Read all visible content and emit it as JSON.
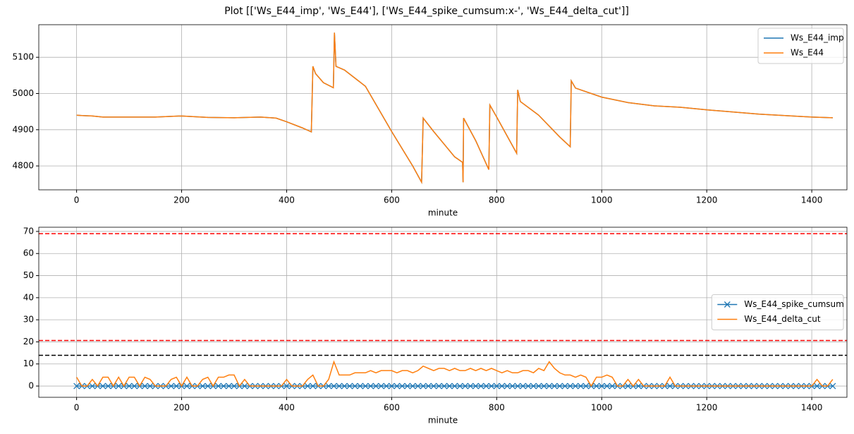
{
  "title": "Plot [['Ws_E44_imp', 'Ws_E44'], ['Ws_E44_spike_cumsum:x-', 'Ws_E44_delta_cut']]",
  "chart_data": [
    {
      "type": "line",
      "xlabel": "minute",
      "grid": true,
      "legend": "upper right",
      "xlim": [
        -72,
        1467
      ],
      "xticks": [
        0,
        200,
        400,
        600,
        800,
        1000,
        1200,
        1400
      ],
      "ylim": [
        4734,
        5190
      ],
      "yticks": [
        4800,
        4900,
        5000,
        5100
      ],
      "x": [
        0,
        10,
        30,
        50,
        100,
        150,
        200,
        250,
        300,
        350,
        380,
        400,
        430,
        447,
        450,
        455,
        470,
        489,
        491,
        494,
        510,
        550,
        600,
        640,
        657,
        660,
        680,
        720,
        735,
        736,
        737,
        760,
        785,
        787,
        800,
        838,
        840,
        845,
        880,
        920,
        940,
        942,
        950,
        1000,
        1050,
        1100,
        1150,
        1200,
        1300,
        1400,
        1440
      ],
      "series": [
        {
          "name": "Ws_E44_imp",
          "color": "#1f77b4",
          "values": [
            4940,
            4939,
            4938,
            4935,
            4935,
            4935,
            4938,
            4934,
            4933,
            4935,
            4932,
            4922,
            4905,
            4894,
            5075,
            5055,
            5030,
            5016,
            5168,
            5075,
            5065,
            5020,
            4895,
            4800,
            4755,
            4932,
            4895,
            4825,
            4810,
            4755,
            4932,
            4870,
            4790,
            4968,
            4935,
            4835,
            5010,
            4978,
            4940,
            4880,
            4853,
            5035,
            5015,
            4990,
            4975,
            4966,
            4962,
            4955,
            4943,
            4935,
            4933
          ]
        },
        {
          "name": "Ws_E44",
          "color": "#ff7f0e",
          "values": [
            4940,
            4939,
            4938,
            4935,
            4935,
            4935,
            4938,
            4934,
            4933,
            4935,
            4932,
            4922,
            4905,
            4894,
            5075,
            5055,
            5030,
            5016,
            5168,
            5075,
            5065,
            5020,
            4895,
            4800,
            4755,
            4932,
            4895,
            4825,
            4810,
            4755,
            4932,
            4870,
            4790,
            4968,
            4935,
            4835,
            5010,
            4978,
            4940,
            4880,
            4853,
            5035,
            5015,
            4990,
            4975,
            4966,
            4962,
            4955,
            4943,
            4935,
            4933
          ]
        }
      ]
    },
    {
      "type": "line",
      "xlabel": "minute",
      "grid": true,
      "legend": "center right",
      "xlim": [
        -72,
        1467
      ],
      "xticks": [
        0,
        200,
        400,
        600,
        800,
        1000,
        1200,
        1400
      ],
      "ylim": [
        -5.1,
        71.9
      ],
      "yticks": [
        0,
        10,
        20,
        30,
        40,
        50,
        60,
        70
      ],
      "hlines": [
        {
          "value": 69,
          "color": "#ff0000"
        },
        {
          "value": 20.6,
          "color": "#ff0000"
        },
        {
          "value": 13.9,
          "color": "#000000"
        }
      ],
      "x": [
        0,
        10,
        20,
        30,
        40,
        50,
        60,
        70,
        80,
        90,
        100,
        110,
        120,
        130,
        140,
        150,
        160,
        170,
        180,
        190,
        200,
        210,
        220,
        230,
        240,
        250,
        260,
        270,
        280,
        290,
        300,
        310,
        320,
        330,
        340,
        350,
        360,
        370,
        380,
        390,
        400,
        410,
        420,
        430,
        440,
        450,
        460,
        470,
        480,
        490,
        500,
        510,
        520,
        530,
        540,
        550,
        560,
        570,
        580,
        590,
        600,
        610,
        620,
        630,
        640,
        650,
        660,
        670,
        680,
        690,
        700,
        710,
        720,
        730,
        740,
        750,
        760,
        770,
        780,
        790,
        800,
        810,
        820,
        830,
        840,
        850,
        860,
        870,
        880,
        890,
        900,
        910,
        920,
        930,
        940,
        950,
        960,
        970,
        980,
        990,
        1000,
        1010,
        1020,
        1030,
        1040,
        1050,
        1060,
        1070,
        1080,
        1090,
        1100,
        1110,
        1120,
        1130,
        1140,
        1150,
        1160,
        1170,
        1180,
        1190,
        1200,
        1210,
        1220,
        1230,
        1240,
        1250,
        1260,
        1270,
        1280,
        1290,
        1300,
        1310,
        1320,
        1330,
        1340,
        1350,
        1360,
        1370,
        1380,
        1390,
        1400,
        1410,
        1420,
        1430,
        1440
      ],
      "series": [
        {
          "name": "Ws_E44_spike_cumsum",
          "color": "#1f77b4",
          "marker": "x",
          "values": [
            0,
            0,
            0,
            0,
            0,
            0,
            0,
            0,
            0,
            0,
            0,
            0,
            0,
            0,
            0,
            0,
            0,
            0,
            0,
            0,
            0,
            0,
            0,
            0,
            0,
            0,
            0,
            0,
            0,
            0,
            0,
            0,
            0,
            0,
            0,
            0,
            0,
            0,
            0,
            0,
            0,
            0,
            0,
            0,
            0,
            0,
            0,
            0,
            0,
            0,
            0,
            0,
            0,
            0,
            0,
            0,
            0,
            0,
            0,
            0,
            0,
            0,
            0,
            0,
            0,
            0,
            0,
            0,
            0,
            0,
            0,
            0,
            0,
            0,
            0,
            0,
            0,
            0,
            0,
            0,
            0,
            0,
            0,
            0,
            0,
            0,
            0,
            0,
            0,
            0,
            0,
            0,
            0,
            0,
            0,
            0,
            0,
            0,
            0,
            0,
            0,
            0,
            0,
            0,
            0,
            0,
            0,
            0,
            0,
            0,
            0,
            0,
            0,
            0,
            0,
            0,
            0,
            0,
            0,
            0,
            0,
            0,
            0,
            0,
            0,
            0,
            0,
            0,
            0,
            0,
            0,
            0,
            0,
            0,
            0,
            0,
            0,
            0,
            0,
            0,
            0,
            0,
            0,
            0,
            0
          ]
        },
        {
          "name": "Ws_E44_delta_cut",
          "color": "#ff7f0e",
          "values": [
            4,
            0,
            0,
            3,
            0,
            4,
            4,
            0,
            4,
            0,
            4,
            4,
            0,
            4,
            3,
            0,
            0,
            0,
            3,
            4,
            0,
            4,
            0,
            0,
            3,
            4,
            0,
            4,
            4,
            5,
            5,
            0,
            3,
            0,
            0,
            0,
            0,
            0,
            0,
            0,
            3,
            0,
            0,
            0,
            3,
            5,
            0,
            0,
            3,
            11,
            5,
            5,
            5,
            6,
            6,
            6,
            7,
            6,
            7,
            7,
            7,
            6,
            7,
            7,
            6,
            7,
            9,
            8,
            7,
            8,
            8,
            7,
            8,
            7,
            7,
            8,
            7,
            8,
            7,
            8,
            7,
            6,
            7,
            6,
            6,
            7,
            7,
            6,
            8,
            7,
            11,
            8,
            6,
            5,
            5,
            4,
            5,
            4,
            0,
            4,
            4,
            5,
            4,
            0,
            0,
            3,
            0,
            3,
            0,
            0,
            0,
            0,
            0,
            4,
            0,
            0,
            0,
            0,
            0,
            0,
            0,
            0,
            0,
            0,
            0,
            0,
            0,
            0,
            0,
            0,
            0,
            0,
            0,
            0,
            0,
            0,
            0,
            0,
            0,
            0,
            0,
            3,
            0,
            0,
            3
          ]
        }
      ]
    }
  ]
}
